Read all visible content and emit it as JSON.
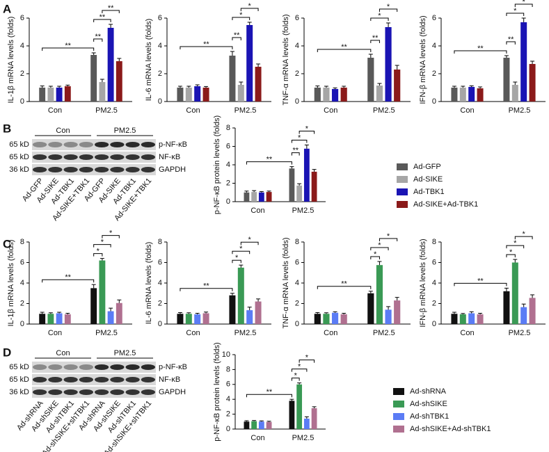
{
  "panels": [
    "A",
    "B",
    "C",
    "D"
  ],
  "blots": [
    {
      "groups": [
        "Con",
        "PM2.5"
      ],
      "rows": [
        {
          "marker": "65 kD",
          "label": "p-NF-κB"
        },
        {
          "marker": "65 kD",
          "label": "NF-κB"
        },
        {
          "marker": "36 kD",
          "label": "GAPDH"
        }
      ],
      "lanes": [
        "Ad-GFP",
        "Ad-SIKE",
        "Ad-TBK1",
        "Ad-SIKE+TBK1",
        "Ad-GFP",
        "Ad-SIKE",
        "Ad-TBK1",
        "Ad-SIKE+TBK1"
      ]
    },
    {
      "groups": [
        "Con",
        "PM2.5"
      ],
      "rows": [
        {
          "marker": "65 kD",
          "label": "p-NF-κB"
        },
        {
          "marker": "65 kD",
          "label": "NF-κB"
        },
        {
          "marker": "36 kD",
          "label": "GAPDH"
        }
      ],
      "lanes": [
        "Ad-shRNA",
        "Ad-shSIKE",
        "Ad-shTBK1",
        "Ad-shSIKE+shTBK1",
        "Ad-shRNA",
        "Ad-shSIKE",
        "Ad-shTBK1",
        "Ad-shSIKE+shTBK1"
      ]
    }
  ],
  "chart_data": [
    {
      "type": "bar",
      "y_label": "IL-1β mRNA levels (folds)",
      "categories": [
        "Con",
        "PM2.5"
      ],
      "ylim": [
        0,
        6
      ],
      "yticks": [
        0,
        2,
        4,
        6
      ],
      "significance": [
        "**",
        "**",
        "**",
        "**"
      ],
      "series": [
        {
          "color": "#595959",
          "values": [
            1.0,
            3.35
          ],
          "errors": [
            0.12,
            0.15
          ]
        },
        {
          "color": "#a6a6a6",
          "values": [
            1.0,
            1.4
          ],
          "errors": [
            0.1,
            0.2
          ]
        },
        {
          "color": "#1a14b4",
          "values": [
            1.0,
            5.3
          ],
          "errors": [
            0.1,
            0.25
          ]
        },
        {
          "color": "#8b1a1a",
          "values": [
            1.1,
            2.9
          ],
          "errors": [
            0.08,
            0.2
          ]
        }
      ]
    },
    {
      "type": "bar",
      "y_label": "IL-6 mRNA levels (folds)",
      "categories": [
        "Con",
        "PM2.5"
      ],
      "ylim": [
        0,
        6
      ],
      "yticks": [
        0,
        2,
        4,
        6
      ],
      "significance": [
        "**",
        "**",
        "*",
        "*"
      ],
      "series": [
        {
          "color": "#595959",
          "values": [
            1.0,
            3.3
          ],
          "errors": [
            0.1,
            0.3
          ]
        },
        {
          "color": "#a6a6a6",
          "values": [
            1.0,
            1.2
          ],
          "errors": [
            0.1,
            0.2
          ]
        },
        {
          "color": "#1a14b4",
          "values": [
            1.1,
            5.5
          ],
          "errors": [
            0.1,
            0.2
          ]
        },
        {
          "color": "#8b1a1a",
          "values": [
            1.0,
            2.5
          ],
          "errors": [
            0.08,
            0.2
          ]
        }
      ]
    },
    {
      "type": "bar",
      "y_label": "TNF-α mRNA levels (folds)",
      "categories": [
        "Con",
        "PM2.5"
      ],
      "ylim": [
        0,
        6
      ],
      "yticks": [
        0,
        2,
        4,
        6
      ],
      "significance": [
        "**",
        "**",
        "*",
        "*"
      ],
      "series": [
        {
          "color": "#595959",
          "values": [
            1.0,
            3.15
          ],
          "errors": [
            0.12,
            0.25
          ]
        },
        {
          "color": "#a6a6a6",
          "values": [
            1.0,
            1.15
          ],
          "errors": [
            0.1,
            0.15
          ]
        },
        {
          "color": "#1a14b4",
          "values": [
            0.9,
            5.35
          ],
          "errors": [
            0.08,
            0.3
          ]
        },
        {
          "color": "#8b1a1a",
          "values": [
            1.0,
            2.3
          ],
          "errors": [
            0.1,
            0.3
          ]
        }
      ]
    },
    {
      "type": "bar",
      "y_label": "IFN-β mRNA levels (folds)",
      "categories": [
        "Con",
        "PM2.5"
      ],
      "ylim": [
        0,
        6
      ],
      "yticks": [
        0,
        2,
        4,
        6
      ],
      "significance": [
        "**",
        "**",
        "*",
        "*"
      ],
      "series": [
        {
          "color": "#595959",
          "values": [
            1.0,
            3.15
          ],
          "errors": [
            0.1,
            0.15
          ]
        },
        {
          "color": "#a6a6a6",
          "values": [
            1.0,
            1.2
          ],
          "errors": [
            0.1,
            0.2
          ]
        },
        {
          "color": "#1a14b4",
          "values": [
            1.05,
            5.7
          ],
          "errors": [
            0.08,
            0.3
          ]
        },
        {
          "color": "#8b1a1a",
          "values": [
            0.95,
            2.7
          ],
          "errors": [
            0.1,
            0.2
          ]
        }
      ]
    },
    {
      "type": "bar",
      "y_label": "p-NF-κB protein levels (folds)",
      "categories": [
        "Con",
        "PM2.5"
      ],
      "ylim": [
        0,
        8
      ],
      "yticks": [
        0,
        2,
        4,
        6,
        8
      ],
      "significance": [
        "**",
        "**",
        "*",
        "*"
      ],
      "legend": "right",
      "series": [
        {
          "name": "Ad-GFP",
          "color": "#595959",
          "values": [
            1.0,
            3.6
          ],
          "errors": [
            0.15,
            0.2
          ]
        },
        {
          "name": "Ad-SIKE",
          "color": "#a6a6a6",
          "values": [
            1.05,
            1.75
          ],
          "errors": [
            0.15,
            0.2
          ]
        },
        {
          "name": "Ad-TBK1",
          "color": "#1a14b4",
          "values": [
            1.0,
            5.75
          ],
          "errors": [
            0.1,
            0.4
          ]
        },
        {
          "name": "Ad-SIKE+Ad-TBK1",
          "color": "#8b1a1a",
          "values": [
            1.05,
            3.25
          ],
          "errors": [
            0.1,
            0.25
          ]
        }
      ]
    },
    {
      "type": "bar",
      "y_label": "IL-1β mRNA levels (folds)",
      "categories": [
        "Con",
        "PM2.5"
      ],
      "ylim": [
        0,
        8
      ],
      "yticks": [
        0,
        2,
        4,
        6,
        8
      ],
      "significance": [
        "**",
        "*",
        "*",
        "*"
      ],
      "series": [
        {
          "color": "#111111",
          "values": [
            1.0,
            3.5
          ],
          "errors": [
            0.15,
            0.35
          ]
        },
        {
          "color": "#3a9a55",
          "values": [
            1.0,
            6.2
          ],
          "errors": [
            0.1,
            0.2
          ]
        },
        {
          "color": "#5b7cf5",
          "values": [
            1.05,
            1.25
          ],
          "errors": [
            0.1,
            0.3
          ]
        },
        {
          "color": "#b07090",
          "values": [
            0.95,
            2.05
          ],
          "errors": [
            0.1,
            0.3
          ]
        }
      ]
    },
    {
      "type": "bar",
      "y_label": "IL-6 mRNA levels (folds)",
      "categories": [
        "Con",
        "PM2.5"
      ],
      "ylim": [
        0,
        8
      ],
      "yticks": [
        0,
        2,
        4,
        6,
        8
      ],
      "significance": [
        "**",
        "*",
        "*",
        "*"
      ],
      "series": [
        {
          "color": "#111111",
          "values": [
            1.0,
            2.8
          ],
          "errors": [
            0.12,
            0.2
          ]
        },
        {
          "color": "#3a9a55",
          "values": [
            1.0,
            5.5
          ],
          "errors": [
            0.1,
            0.25
          ]
        },
        {
          "color": "#5b7cf5",
          "values": [
            0.95,
            1.35
          ],
          "errors": [
            0.1,
            0.3
          ]
        },
        {
          "color": "#b07090",
          "values": [
            1.05,
            2.2
          ],
          "errors": [
            0.12,
            0.25
          ]
        }
      ]
    },
    {
      "type": "bar",
      "y_label": "TNF-α mRNA levels (folds)",
      "categories": [
        "Con",
        "PM2.5"
      ],
      "ylim": [
        0,
        8
      ],
      "yticks": [
        0,
        2,
        4,
        6,
        8
      ],
      "significance": [
        "**",
        "*",
        "*",
        "*"
      ],
      "series": [
        {
          "color": "#111111",
          "values": [
            1.0,
            3.0
          ],
          "errors": [
            0.12,
            0.2
          ]
        },
        {
          "color": "#3a9a55",
          "values": [
            1.0,
            5.75
          ],
          "errors": [
            0.1,
            0.35
          ]
        },
        {
          "color": "#5b7cf5",
          "values": [
            1.1,
            1.4
          ],
          "errors": [
            0.1,
            0.3
          ]
        },
        {
          "color": "#b07090",
          "values": [
            0.95,
            2.3
          ],
          "errors": [
            0.1,
            0.3
          ]
        }
      ]
    },
    {
      "type": "bar",
      "y_label": "IFN-β mRNA levels (folds)",
      "categories": [
        "Con",
        "PM2.5"
      ],
      "ylim": [
        0,
        8
      ],
      "yticks": [
        0,
        2,
        4,
        6,
        8
      ],
      "significance": [
        "**",
        "*",
        "*",
        "*"
      ],
      "series": [
        {
          "color": "#111111",
          "values": [
            1.0,
            3.2
          ],
          "errors": [
            0.15,
            0.3
          ]
        },
        {
          "color": "#3a9a55",
          "values": [
            0.95,
            6.0
          ],
          "errors": [
            0.08,
            0.3
          ]
        },
        {
          "color": "#5b7cf5",
          "values": [
            1.05,
            1.65
          ],
          "errors": [
            0.15,
            0.3
          ]
        },
        {
          "color": "#b07090",
          "values": [
            0.95,
            2.55
          ],
          "errors": [
            0.1,
            0.3
          ]
        }
      ]
    },
    {
      "type": "bar",
      "y_label": "p-NF-κB protein levels (folds)",
      "categories": [
        "Con",
        "PM2.5"
      ],
      "ylim": [
        0,
        10
      ],
      "yticks": [
        0,
        2,
        4,
        6,
        8,
        10
      ],
      "significance": [
        "**",
        "*",
        "*",
        "*"
      ],
      "legend": "right",
      "series": [
        {
          "name": "Ad-shRNA",
          "color": "#111111",
          "values": [
            1.0,
            3.8
          ],
          "errors": [
            0.12,
            0.2
          ]
        },
        {
          "name": "Ad-shSIKE",
          "color": "#3a9a55",
          "values": [
            1.05,
            6.0
          ],
          "errors": [
            0.1,
            0.2
          ]
        },
        {
          "name": "Ad-shTBK1",
          "color": "#5b7cf5",
          "values": [
            1.0,
            1.4
          ],
          "errors": [
            0.1,
            0.25
          ]
        },
        {
          "name": "Ad-shSIKE+Ad-shTBK1",
          "color": "#b07090",
          "values": [
            0.95,
            2.8
          ],
          "errors": [
            0.1,
            0.2
          ]
        }
      ]
    }
  ]
}
